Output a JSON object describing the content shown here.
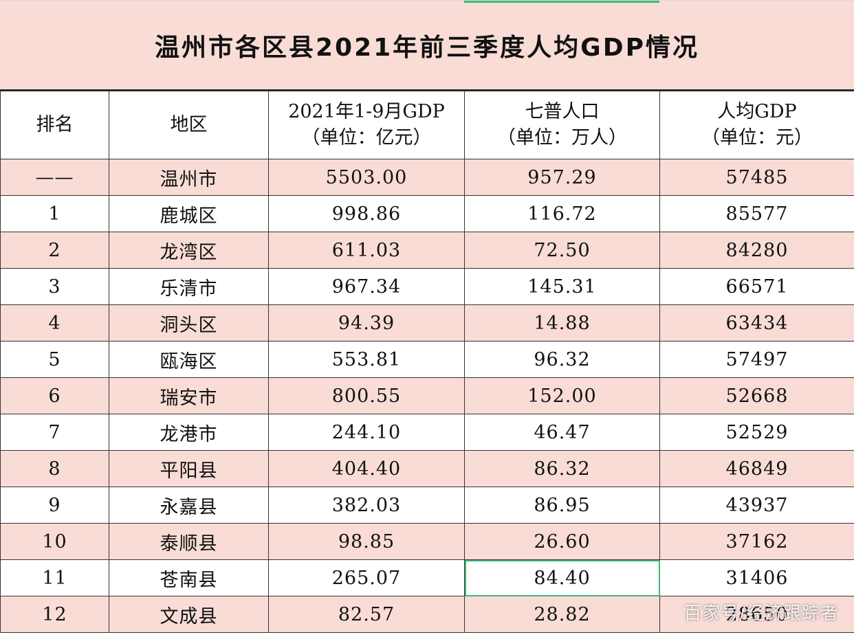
{
  "title": "温州市各区县2021年前三季度人均GDP情况",
  "headers": [
    {
      "line1": "排名",
      "line2": ""
    },
    {
      "line1": "地区",
      "line2": ""
    },
    {
      "line1": "2021年1-9月GDP",
      "line2": "（单位：亿元）"
    },
    {
      "line1": "七普人口",
      "line2": "（单位：万人）"
    },
    {
      "line1": "人均GDP",
      "line2": "（单位：元）"
    }
  ],
  "rows": [
    {
      "rank": "——",
      "region": "温州市",
      "gdp": "5503.00",
      "population": "957.29",
      "per_capita": "57485"
    },
    {
      "rank": "1",
      "region": "鹿城区",
      "gdp": "998.86",
      "population": "116.72",
      "per_capita": "85577"
    },
    {
      "rank": "2",
      "region": "龙湾区",
      "gdp": "611.03",
      "population": "72.50",
      "per_capita": "84280"
    },
    {
      "rank": "3",
      "region": "乐清市",
      "gdp": "967.34",
      "population": "145.31",
      "per_capita": "66571"
    },
    {
      "rank": "4",
      "region": "洞头区",
      "gdp": "94.39",
      "population": "14.88",
      "per_capita": "63434"
    },
    {
      "rank": "5",
      "region": "瓯海区",
      "gdp": "553.81",
      "population": "96.32",
      "per_capita": "57497"
    },
    {
      "rank": "6",
      "region": "瑞安市",
      "gdp": "800.55",
      "population": "152.00",
      "per_capita": "52668"
    },
    {
      "rank": "7",
      "region": "龙港市",
      "gdp": "244.10",
      "population": "46.47",
      "per_capita": "52529"
    },
    {
      "rank": "8",
      "region": "平阳县",
      "gdp": "404.40",
      "population": "86.32",
      "per_capita": "46849"
    },
    {
      "rank": "9",
      "region": "永嘉县",
      "gdp": "382.03",
      "population": "86.95",
      "per_capita": "43937"
    },
    {
      "rank": "10",
      "region": "泰顺县",
      "gdp": "98.85",
      "population": "26.60",
      "per_capita": "37162"
    },
    {
      "rank": "11",
      "region": "苍南县",
      "gdp": "265.07",
      "population": "84.40",
      "per_capita": "31406"
    },
    {
      "rank": "12",
      "region": "文成县",
      "gdp": "82.57",
      "population": "28.82",
      "per_capita": "28650"
    }
  ],
  "watermark": "百家号/经济跟踪者",
  "colors": {
    "row_pink": "#f9dcd6",
    "selection_green": "#3cb878"
  }
}
